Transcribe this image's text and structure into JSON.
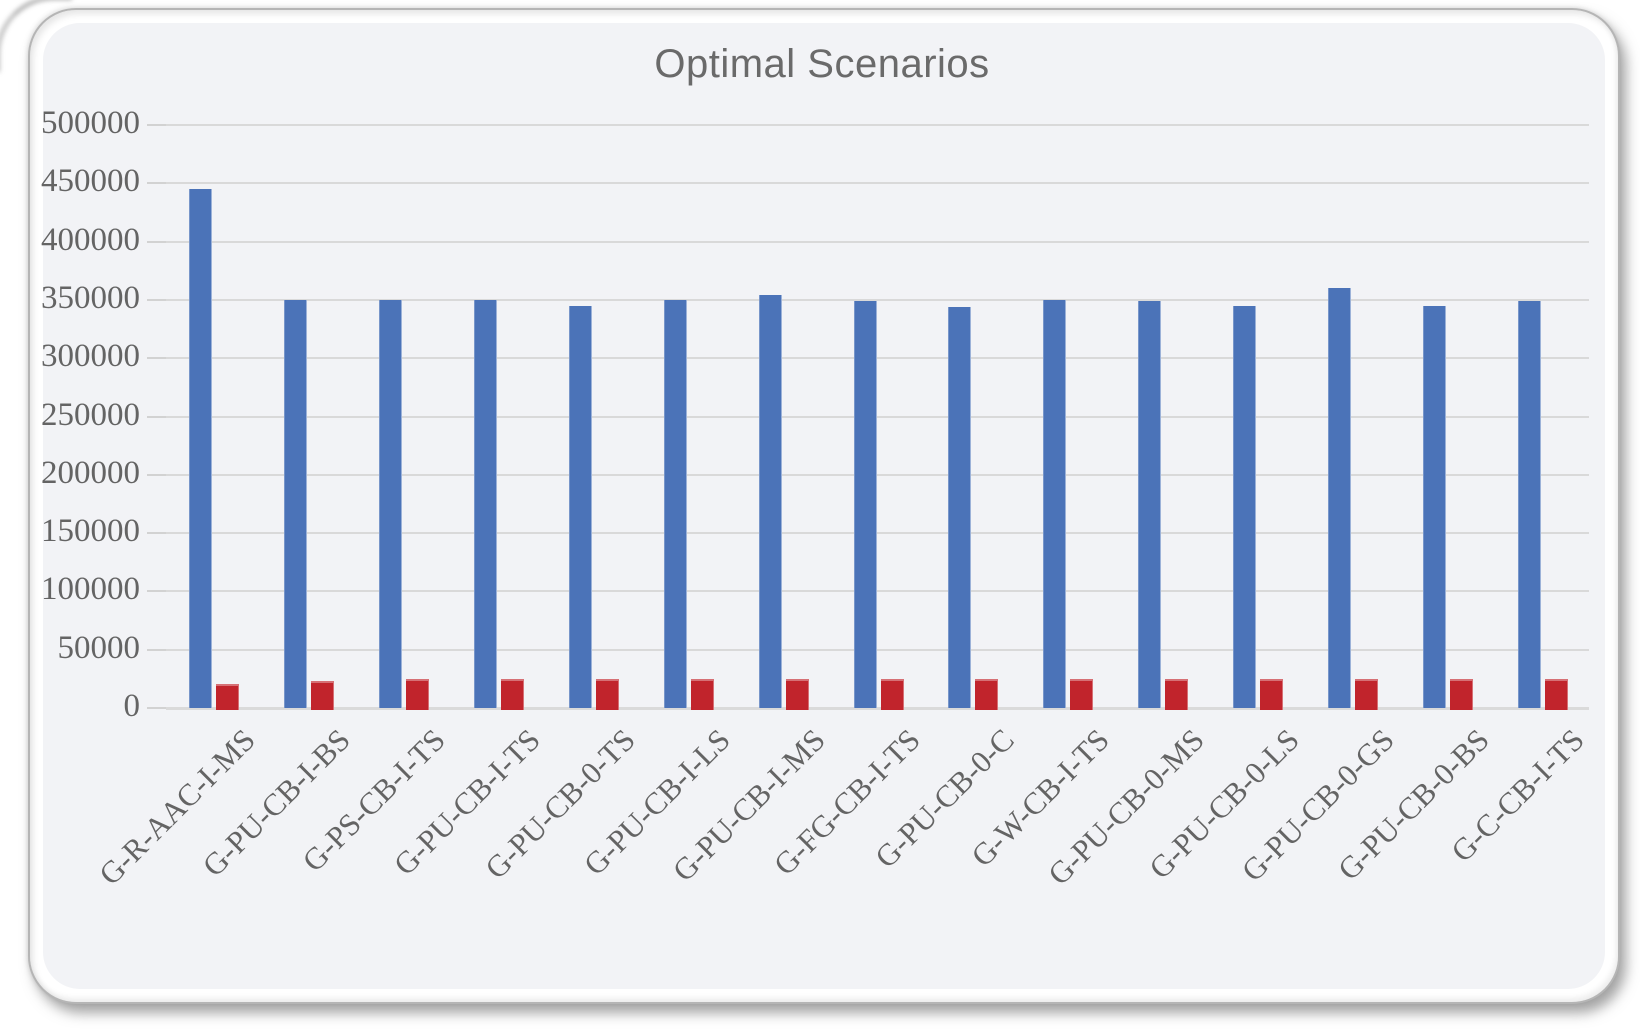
{
  "chart_data": {
    "type": "bar",
    "title": "Optimal Scenarios",
    "categories": [
      "G-R-AAC-I-MS",
      "G-PU-CB-I-BS",
      "G-PS-CB-I-TS",
      "G-PU-CB-I-TS",
      "G-PU-CB-0-TS",
      "G-PU-CB-I-LS",
      "G-PU-CB-I-MS",
      "G-FG-CB-I-TS",
      "G-PU-CB-0-C",
      "G-W-CB-I-TS",
      "G-PU-CB-0-MS",
      "G-PU-CB-0-LS",
      "G-PU-CB-0-GS",
      "G-PU-CB-0-BS",
      "G-C-CB-I-TS"
    ],
    "series": [
      {
        "name": "blue",
        "color": "#4b73b8",
        "values": [
          445000,
          350000,
          350000,
          350000,
          345000,
          350000,
          354000,
          349000,
          344000,
          350000,
          349000,
          345000,
          360000,
          345000,
          349000
        ]
      },
      {
        "name": "red",
        "color": "#c1242c",
        "values": [
          21000,
          23000,
          25000,
          25000,
          25000,
          25000,
          25000,
          25000,
          25000,
          25000,
          25000,
          25000,
          25000,
          25000,
          25000
        ]
      }
    ],
    "xlabel": "",
    "ylabel": "",
    "ylim": [
      0,
      500000
    ],
    "ytick_step": 50000,
    "ytick_labels": [
      "0",
      "50000",
      "100000",
      "150000",
      "200000",
      "250000",
      "300000",
      "350000",
      "400000",
      "450000",
      "500000"
    ],
    "grid": true,
    "legend_position": "none"
  },
  "colors": {
    "page_bg": "#ffffff",
    "chart_bg": "#f2f3f6",
    "gridline": "#d9d9d9",
    "axis_text": "#646464",
    "title_text": "#6a6a6a",
    "frame_border": "#b5b5b5"
  }
}
